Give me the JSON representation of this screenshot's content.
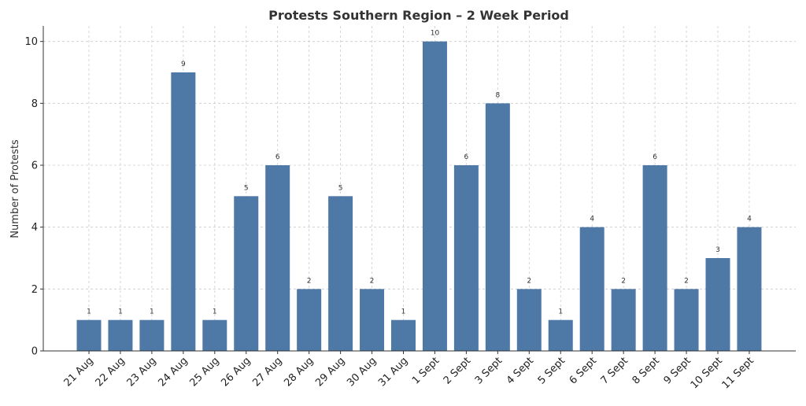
{
  "chart_data": {
    "type": "bar",
    "title": "Protests Southern Region – 2 Week Period",
    "xlabel": "",
    "ylabel": "Number of Protests",
    "categories": [
      "21 Aug",
      "22 Aug",
      "23 Aug",
      "24 Aug",
      "25 Aug",
      "26 Aug",
      "27 Aug",
      "28 Aug",
      "29 Aug",
      "30 Aug",
      "31 Aug",
      "1 Sept",
      "2 Sept",
      "3 Sept",
      "4 Sept",
      "5 Sept",
      "6 Sept",
      "7 Sept",
      "8 Sept",
      "9 Sept",
      "10 Sept",
      "11 Sept"
    ],
    "values": [
      1,
      1,
      1,
      9,
      1,
      5,
      6,
      2,
      5,
      2,
      1,
      10,
      6,
      8,
      2,
      1,
      4,
      2,
      6,
      2,
      3,
      4
    ],
    "ylim": [
      0,
      10.5
    ],
    "yticks": [
      0,
      2,
      4,
      6,
      8,
      10
    ],
    "grid": true,
    "bar_color": "#4e79a7",
    "data_labels": true
  }
}
